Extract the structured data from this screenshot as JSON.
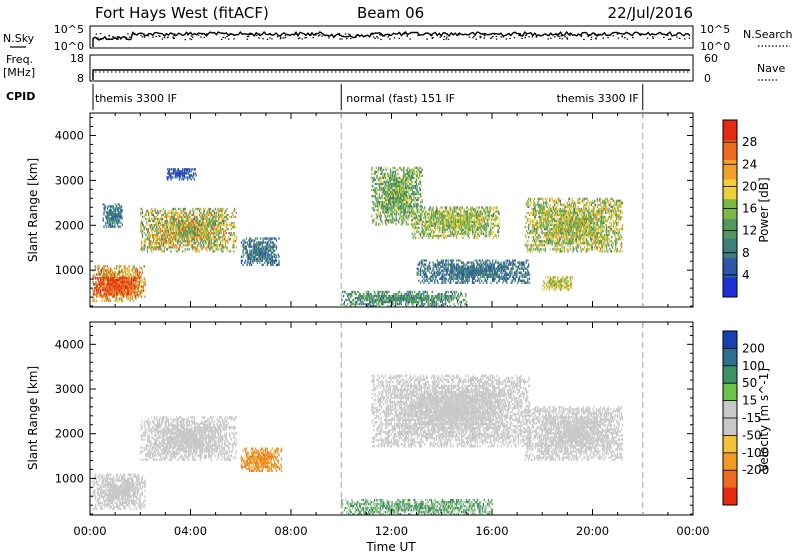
{
  "header": {
    "radar": "Fort Hays West (fitACF)",
    "beam": "Beam 06",
    "date": "22/Jul/2016"
  },
  "aux_panels": {
    "nsky_label": "N.Sky",
    "nsky_ticks": [
      "10^5",
      "10^0"
    ],
    "nsearch_label": "N.Search",
    "nsearch_ticks": [
      "10^5",
      "10^0"
    ],
    "freq_label_1": "Freq.",
    "freq_label_2": "[MHz]",
    "freq_ticks": [
      "18",
      "8"
    ],
    "nave_label": "Nave",
    "nave_ticks": [
      "60",
      "0"
    ],
    "cpid_label": "CPID",
    "cpid_segments": [
      {
        "label": "themis 3300 IF",
        "start_h": 0.0,
        "end_h": 10.0
      },
      {
        "label": "normal (fast) 151 IF",
        "start_h": 10.0,
        "end_h": 22.0
      },
      {
        "label": "themis 3300 IF",
        "start_h": 22.0,
        "end_h": 24.0
      }
    ]
  },
  "colors": {
    "power_scale": [
      "#1f2fd8",
      "#2d57a8",
      "#3f7f7b",
      "#4f9a5c",
      "#7db845",
      "#f0d03a",
      "#f2a02a",
      "#ee6a1e",
      "#e42a12"
    ],
    "velocity_scale": [
      "#1a3fb0",
      "#2c6f90",
      "#3d9368",
      "#6dc24a",
      "#c8c8c8",
      "#c8c8c8",
      "#f2c23a",
      "#f29a26",
      "#ee6a1e",
      "#e42a12"
    ]
  },
  "chart_data": [
    {
      "type": "heatmap",
      "title": "",
      "xlabel": "Time UT",
      "ylabel": "Slant Range [km]",
      "x_range_hours": [
        0,
        24
      ],
      "y_range_km": [
        180,
        4500
      ],
      "x_ticks": [
        "00:00",
        "04:00",
        "08:00",
        "12:00",
        "16:00",
        "20:00",
        "00:00"
      ],
      "y_ticks": [
        "1000",
        "2000",
        "3000",
        "4000"
      ],
      "colorbar": {
        "label": "Power [dB]",
        "range": [
          0,
          32
        ],
        "ticks": [
          "4",
          "8",
          "12",
          "16",
          "20",
          "24",
          "28"
        ]
      },
      "regions": [
        {
          "t0": 0.1,
          "t1": 2.2,
          "r0": 300,
          "r1": 1100,
          "value": 22,
          "spread": 8
        },
        {
          "t0": 0.1,
          "t1": 2.0,
          "r0": 400,
          "r1": 850,
          "value": 28,
          "spread": 3
        },
        {
          "t0": 0.5,
          "t1": 1.3,
          "r0": 1950,
          "r1": 2450,
          "value": 8,
          "spread": 4
        },
        {
          "t0": 2.0,
          "t1": 5.8,
          "r0": 1400,
          "r1": 2350,
          "value": 18,
          "spread": 9
        },
        {
          "t0": 6.0,
          "t1": 7.5,
          "r0": 1100,
          "r1": 1700,
          "value": 8,
          "spread": 4
        },
        {
          "t0": 3.0,
          "t1": 4.2,
          "r0": 3000,
          "r1": 3250,
          "value": 5,
          "spread": 2
        },
        {
          "t0": 11.2,
          "t1": 13.2,
          "r0": 2000,
          "r1": 3300,
          "value": 14,
          "spread": 6
        },
        {
          "t0": 12.8,
          "t1": 16.3,
          "r0": 1700,
          "r1": 2400,
          "value": 16,
          "spread": 6
        },
        {
          "t0": 13.0,
          "t1": 17.5,
          "r0": 700,
          "r1": 1200,
          "value": 8,
          "spread": 4
        },
        {
          "t0": 17.3,
          "t1": 21.2,
          "r0": 1400,
          "r1": 2600,
          "value": 17,
          "spread": 7
        },
        {
          "t0": 10.0,
          "t1": 15.0,
          "r0": 180,
          "r1": 500,
          "value": 11,
          "spread": 5
        },
        {
          "t0": 18.0,
          "t1": 19.2,
          "r0": 550,
          "r1": 850,
          "value": 18,
          "spread": 5
        }
      ]
    },
    {
      "type": "heatmap",
      "title": "",
      "xlabel": "Time UT",
      "ylabel": "Slant Range [km]",
      "x_range_hours": [
        0,
        24
      ],
      "y_range_km": [
        180,
        4500
      ],
      "x_ticks": [
        "00:00",
        "04:00",
        "08:00",
        "12:00",
        "16:00",
        "20:00",
        "00:00"
      ],
      "y_ticks": [
        "1000",
        "2000",
        "3000",
        "4000"
      ],
      "colorbar": {
        "label": "Velocity [m s^-1]",
        "ticks": [
          "200",
          "100",
          "50",
          "15",
          "-15",
          "-50",
          "-100",
          "-200"
        ]
      },
      "regions": [
        {
          "t0": 0.1,
          "t1": 2.2,
          "r0": 300,
          "r1": 1100,
          "value": 0,
          "spread": 10
        },
        {
          "t0": 2.0,
          "t1": 5.8,
          "r0": 1400,
          "r1": 2350,
          "value": 0,
          "spread": 12
        },
        {
          "t0": 6.0,
          "t1": 7.6,
          "r0": 1150,
          "r1": 1650,
          "value": -60,
          "spread": 30
        },
        {
          "t0": 11.2,
          "t1": 17.5,
          "r0": 1700,
          "r1": 3300,
          "value": 0,
          "spread": 12
        },
        {
          "t0": 17.3,
          "t1": 21.2,
          "r0": 1400,
          "r1": 2600,
          "value": 0,
          "spread": 10
        },
        {
          "t0": 10.0,
          "t1": 16.0,
          "r0": 180,
          "r1": 500,
          "value": 30,
          "spread": 40
        }
      ]
    }
  ]
}
